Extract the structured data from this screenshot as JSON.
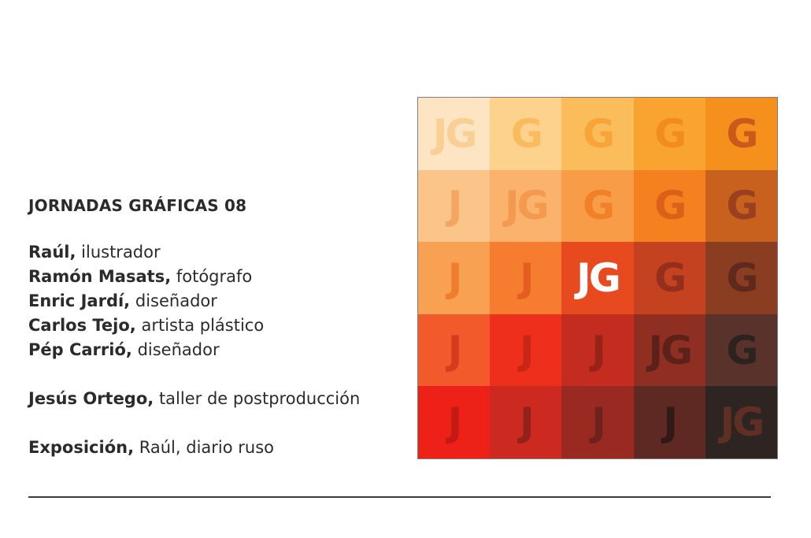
{
  "heading": "JORNADAS GRÁFICAS 08",
  "credits": [
    {
      "name": "Raúl,",
      "role": "ilustrador"
    },
    {
      "name": "Ramón Masats,",
      "role": "fotógrafo"
    },
    {
      "name": "Enric Jardí,",
      "role": "diseñador"
    },
    {
      "name": "Carlos Tejo,",
      "role": "artista plástico"
    },
    {
      "name": "Pép Carrió,",
      "role": "diseñador"
    }
  ],
  "workshop": {
    "name": "Jesús Ortego,",
    "role": "taller de postproducción"
  },
  "exhibition": {
    "name": "Exposición,",
    "role": "Raúl, diario ruso"
  },
  "grid": {
    "cells": [
      [
        {
          "text": "JG",
          "bg": "#fde4c2",
          "fg": "#f9cf94"
        },
        {
          "text": "G",
          "bg": "#fdd28d",
          "fg": "#f9bb5e"
        },
        {
          "text": "G",
          "bg": "#fbbd5b",
          "fg": "#f8a537"
        },
        {
          "text": "G",
          "bg": "#f9a331",
          "fg": "#f28c1e"
        },
        {
          "text": "G",
          "bg": "#f4901b",
          "fg": "#c95a1b"
        }
      ],
      [
        {
          "text": "J",
          "bg": "#fbc488",
          "fg": "#f4a560"
        },
        {
          "text": "JG",
          "bg": "#fab26d",
          "fg": "#f49a50"
        },
        {
          "text": "G",
          "bg": "#f89c47",
          "fg": "#f08128"
        },
        {
          "text": "G",
          "bg": "#f4801f",
          "fg": "#dc6018"
        },
        {
          "text": "G",
          "bg": "#c8601e",
          "fg": "#9a401e"
        }
      ],
      [
        {
          "text": "J",
          "bg": "#f8a153",
          "fg": "#ee7d2e"
        },
        {
          "text": "J",
          "bg": "#f67d30",
          "fg": "#e45e20"
        },
        {
          "text": "JG",
          "bg": "#e84a1f",
          "fg": "#ffffff"
        },
        {
          "text": "G",
          "bg": "#c4421f",
          "fg": "#932f1c"
        },
        {
          "text": "G",
          "bg": "#8b3d22",
          "fg": "#5f2a1e"
        }
      ],
      [
        {
          "text": "J",
          "bg": "#f25a2b",
          "fg": "#d43c1d"
        },
        {
          "text": "J",
          "bg": "#ee2f1c",
          "fg": "#c82617"
        },
        {
          "text": "J",
          "bg": "#c42c1f",
          "fg": "#952318"
        },
        {
          "text": "JG",
          "bg": "#8f2f22",
          "fg": "#5c221a"
        },
        {
          "text": "G",
          "bg": "#59332b",
          "fg": "#2c2320"
        }
      ],
      [
        {
          "text": "J",
          "bg": "#ed2118",
          "fg": "#c31a14"
        },
        {
          "text": "J",
          "bg": "#cc2a21",
          "fg": "#93211b"
        },
        {
          "text": "J",
          "bg": "#9a2a21",
          "fg": "#6d221d"
        },
        {
          "text": "J",
          "bg": "#5e2823",
          "fg": "#301a18"
        },
        {
          "text": "JG",
          "bg": "#2e2522",
          "fg": "#5f2e24"
        }
      ]
    ]
  }
}
